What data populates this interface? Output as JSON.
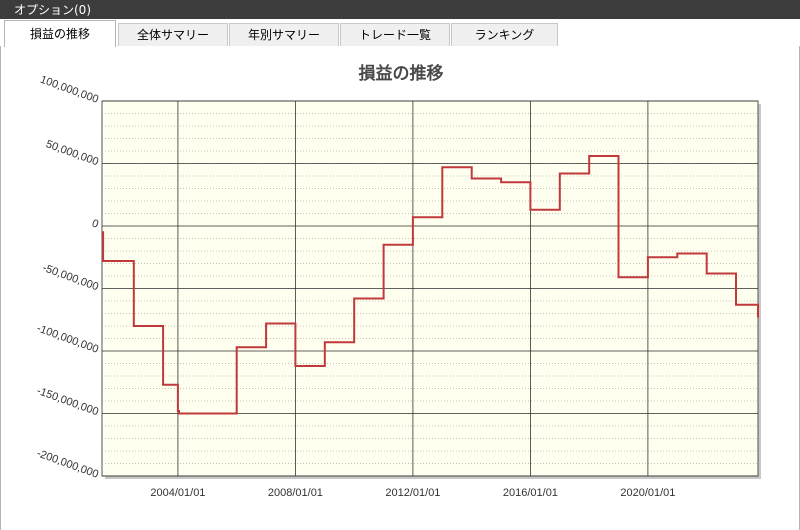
{
  "window": {
    "title": "オプション(0)"
  },
  "tabs": [
    {
      "label": "損益の推移",
      "active": true
    },
    {
      "label": "全体サマリー",
      "active": false
    },
    {
      "label": "年別サマリー",
      "active": false
    },
    {
      "label": "トレード一覧",
      "active": false
    },
    {
      "label": "ランキング",
      "active": false
    }
  ],
  "chart_data": {
    "type": "line",
    "title": "損益の推移",
    "xlabel": "",
    "ylabel": "",
    "ylim": [
      -200000000,
      100000000
    ],
    "xlim": [
      "2001-06-01",
      "2023-10-01"
    ],
    "y_ticks": [
      "100,000,000",
      "50,000,000",
      "0",
      "-50,000,000",
      "-100,000,000",
      "-150,000,000",
      "-200,000,000"
    ],
    "x_ticks": [
      "2004/01/01",
      "2008/01/01",
      "2012/01/01",
      "2016/01/01",
      "2020/01/01"
    ],
    "grid": true,
    "background_color": "#fffff0",
    "line_color": "#c0393b",
    "series": [
      {
        "x": [
          "2001-06-01",
          "2001-06-15",
          "2002-07-01",
          "2003-07-01",
          "2004-01-01",
          "2004-01-15",
          "2006-01-01",
          "2007-01-01",
          "2008-01-01",
          "2009-01-01",
          "2010-01-01",
          "2011-01-01",
          "2012-01-01",
          "2013-01-01",
          "2014-01-01",
          "2015-01-01",
          "2016-01-01",
          "2017-01-01",
          "2018-01-01",
          "2019-01-01",
          "2020-01-01",
          "2021-01-01",
          "2022-01-01",
          "2023-01-01",
          "2023-10-01"
        ],
        "y": [
          -5000000,
          -28000000,
          -80000000,
          -127000000,
          -148000000,
          -150000000,
          -97000000,
          -78000000,
          -112000000,
          -93000000,
          -58000000,
          -15000000,
          7000000,
          47000000,
          38000000,
          35000000,
          13000000,
          42000000,
          56000000,
          -41000000,
          -25000000,
          -22000000,
          -38000000,
          -63000000,
          -73000000
        ]
      }
    ]
  }
}
